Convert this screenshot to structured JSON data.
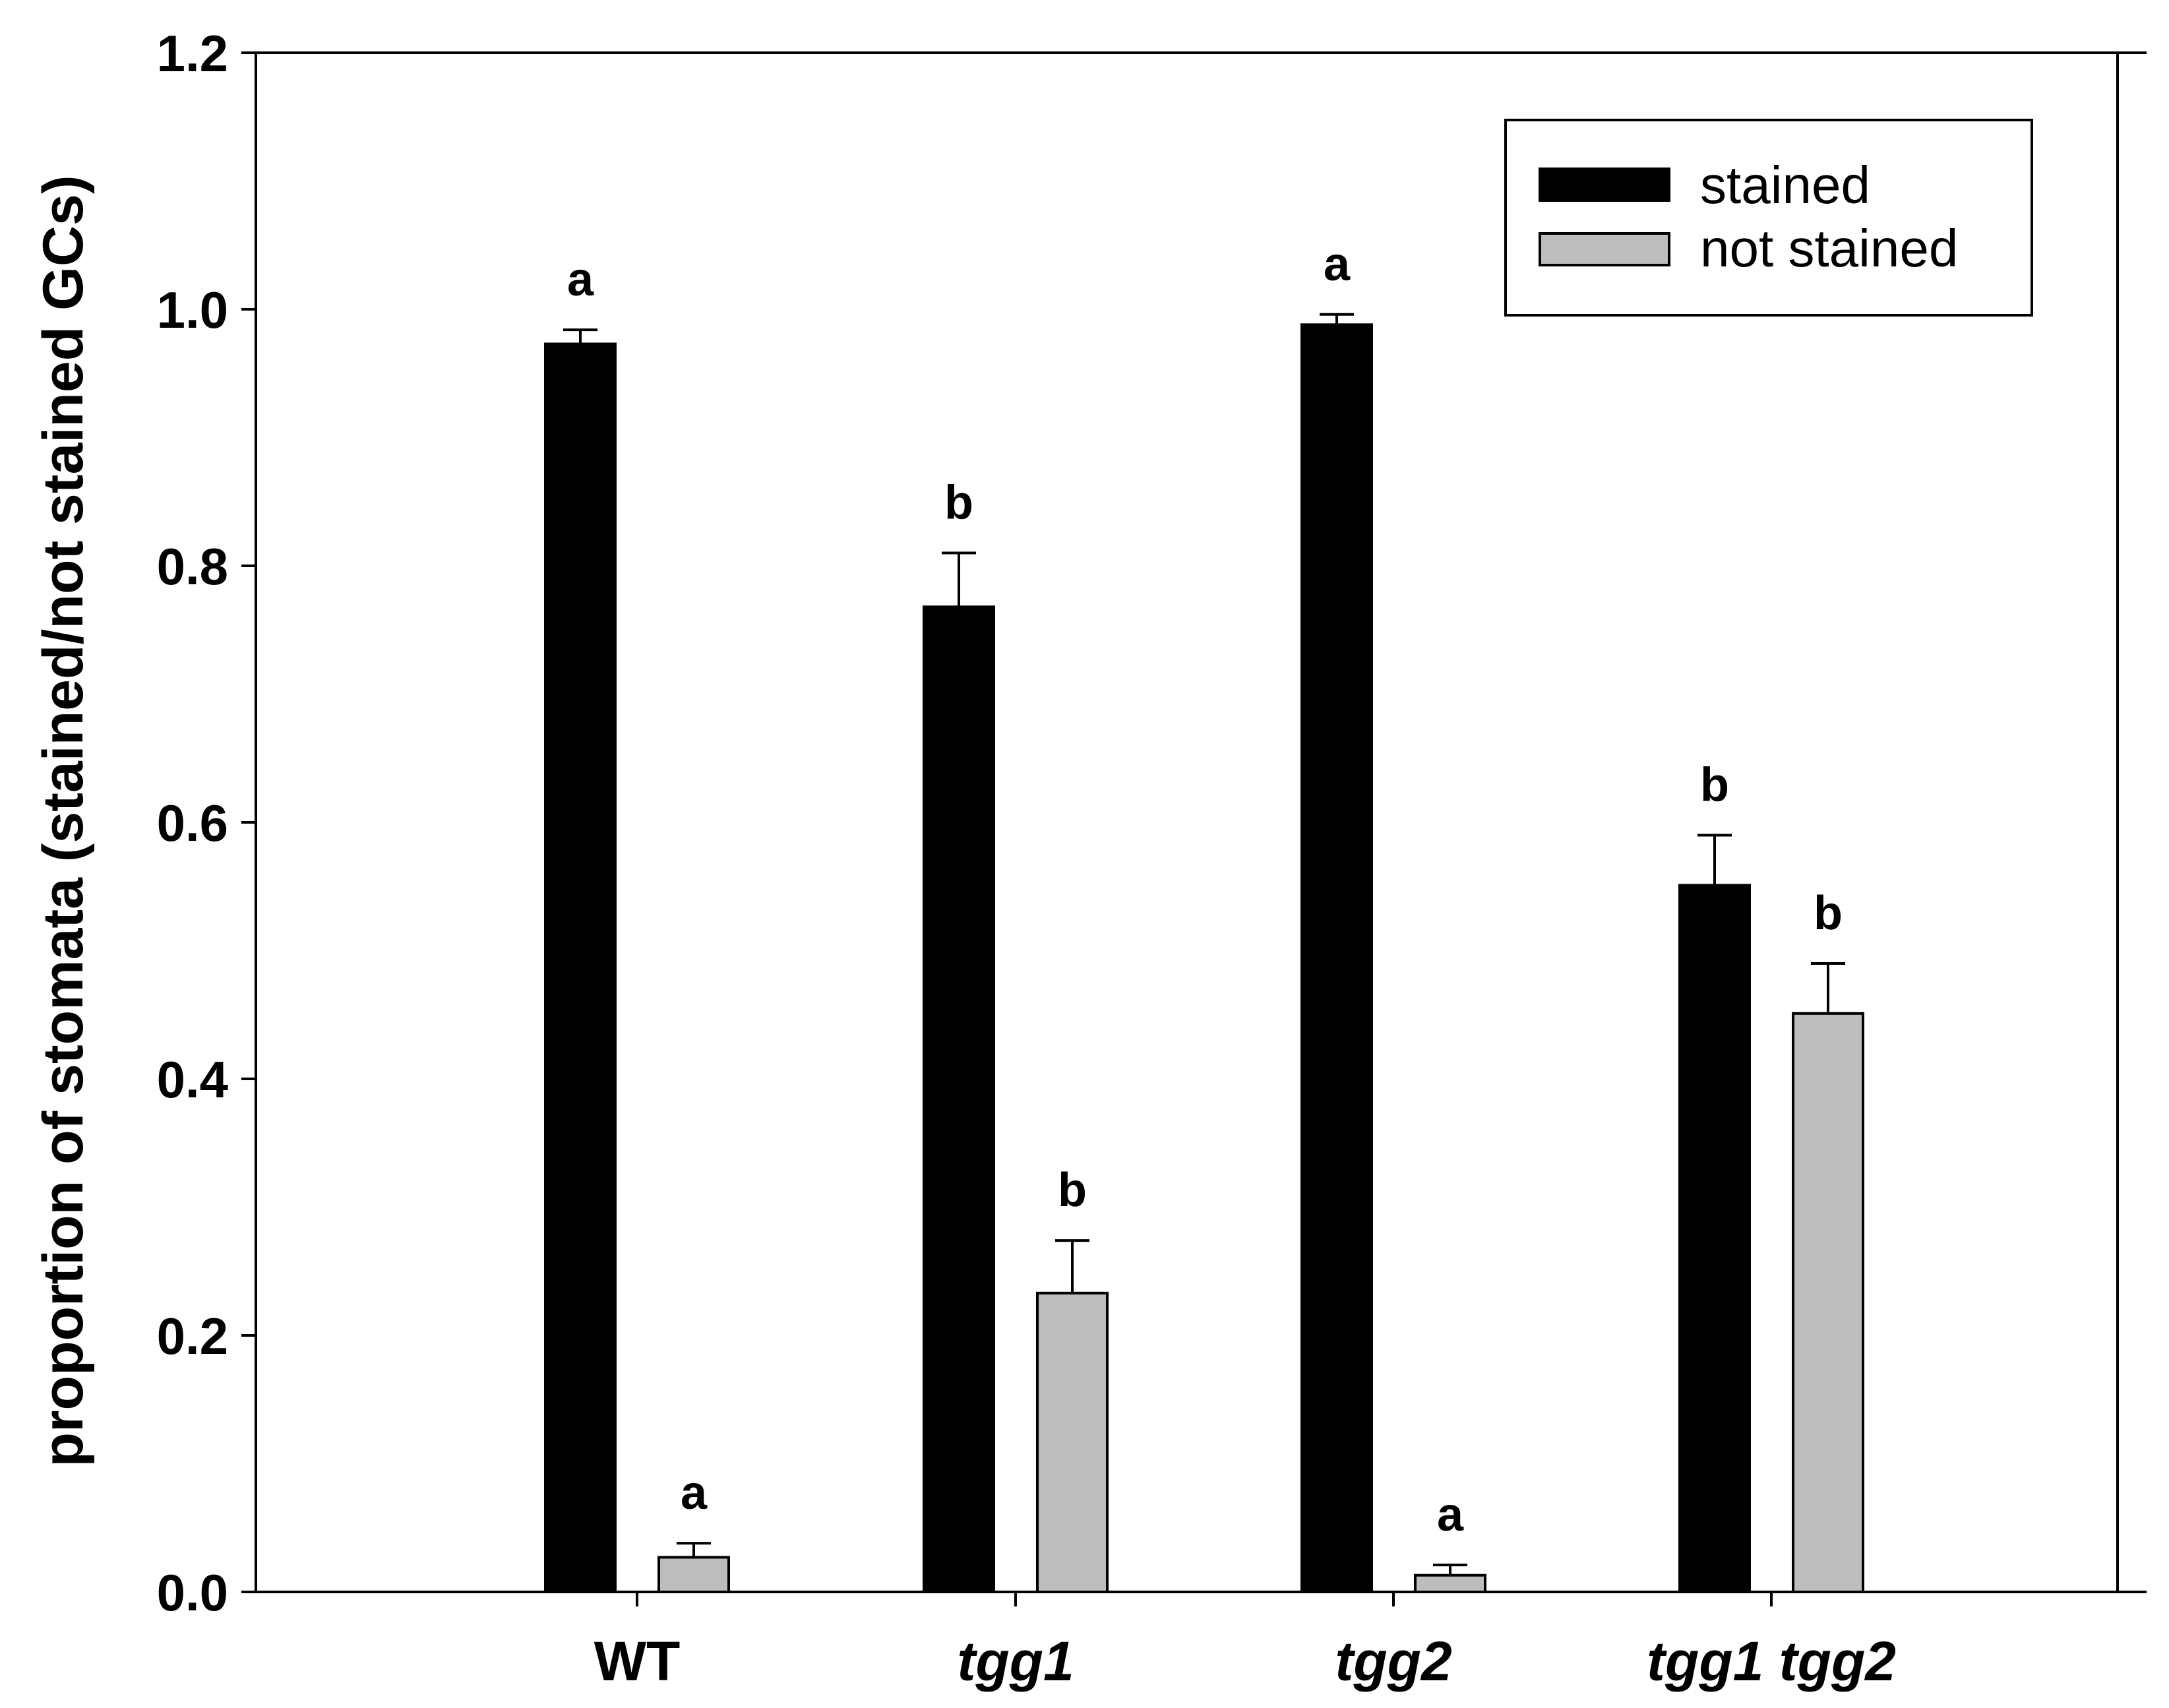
{
  "chart_data": {
    "type": "bar",
    "title": "",
    "xlabel": "",
    "ylabel": "proportion of stomata (stained/not stained GCs)",
    "ylim": [
      0,
      1.2
    ],
    "yticks": [
      "0.0",
      "0.2",
      "0.4",
      "0.6",
      "0.8",
      "1.0",
      "1.2"
    ],
    "ytick_values": [
      0,
      0.2,
      0.4,
      0.6,
      0.8,
      1.0,
      1.2
    ],
    "categories": [
      "WT",
      "tgg1",
      "tgg2",
      "tgg1 tgg2"
    ],
    "category_italic": [
      false,
      true,
      true,
      true
    ],
    "legend_position": "top-right",
    "series": [
      {
        "name": "stained",
        "color": "#000000",
        "values": [
          0.973,
          0.768,
          0.988,
          0.551
        ],
        "errors": [
          0.011,
          0.042,
          0.008,
          0.039
        ],
        "significance": [
          "a",
          "b",
          "a",
          "b"
        ]
      },
      {
        "name": "not stained",
        "color": "#bdbdbd",
        "values": [
          0.027,
          0.233,
          0.013,
          0.451
        ],
        "errors": [
          0.011,
          0.041,
          0.008,
          0.039
        ],
        "significance": [
          "a",
          "b",
          "a",
          "b"
        ]
      }
    ]
  }
}
